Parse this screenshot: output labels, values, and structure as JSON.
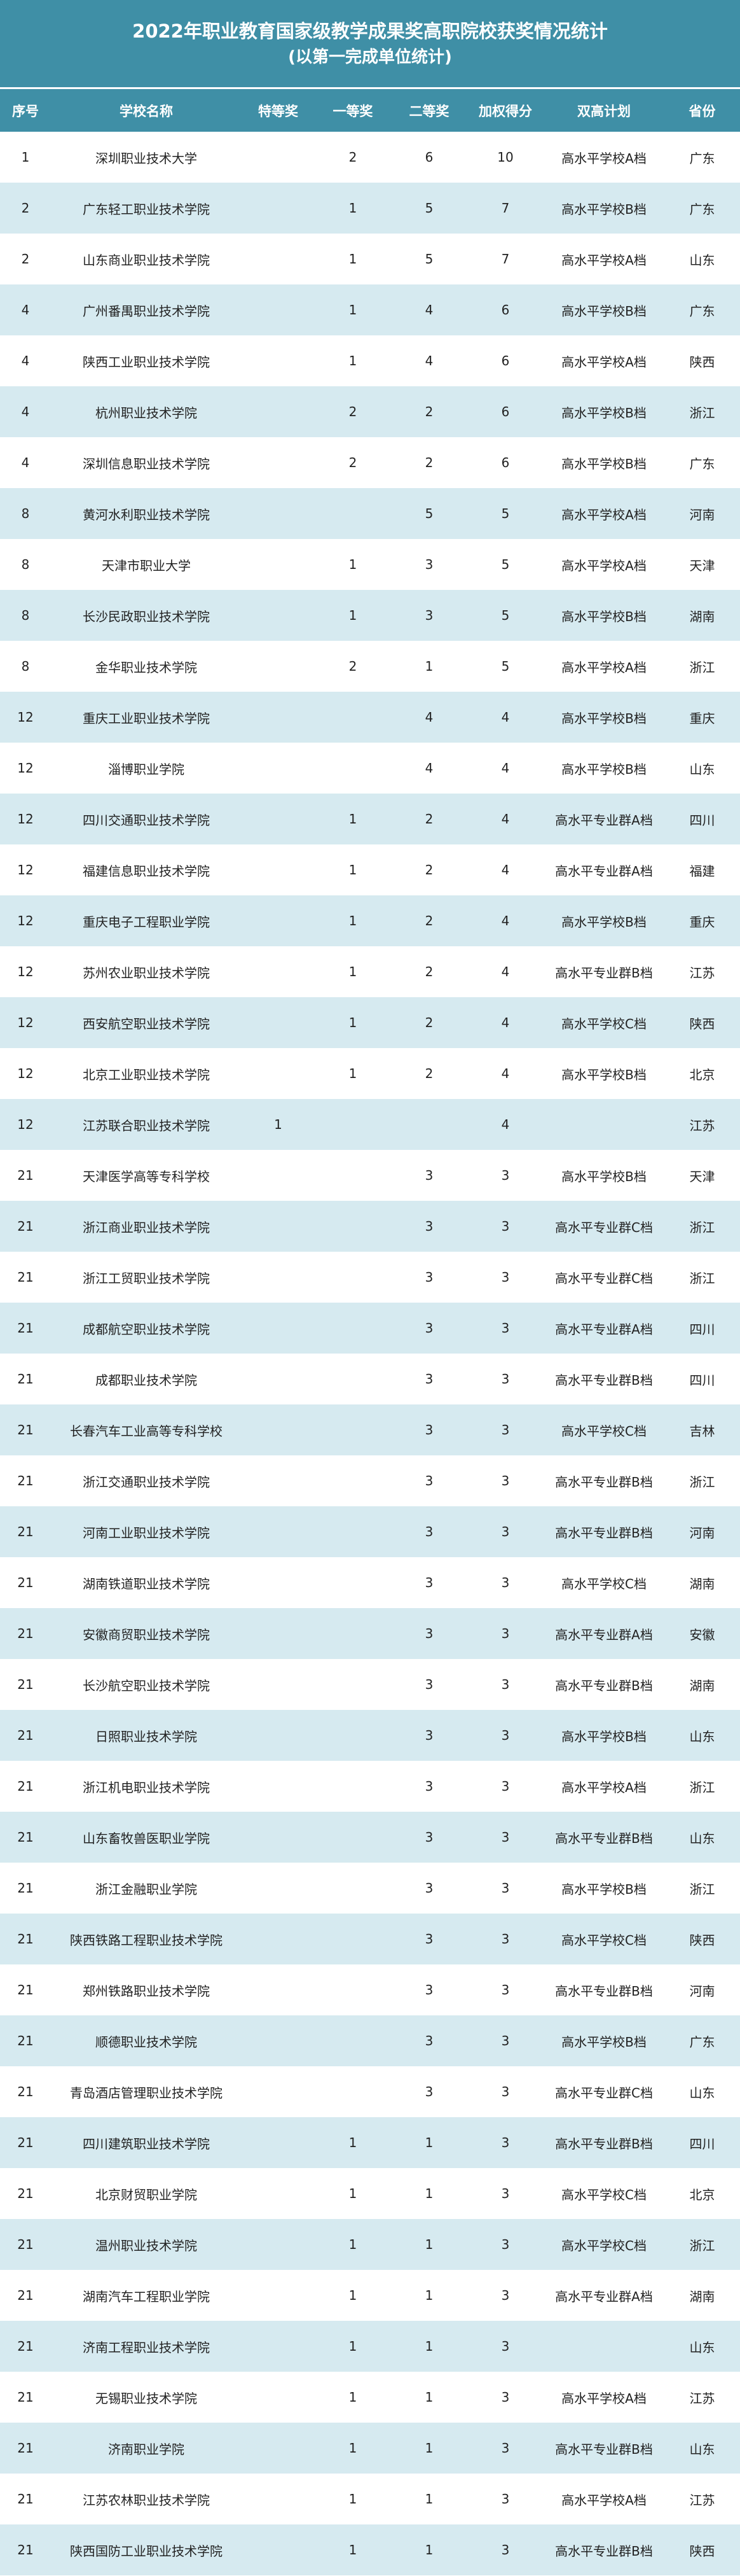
{
  "title": "2022年职业教育国家级教学成果奖高职院校获奖情况统计",
  "subtitle": "(以第一完成单位统计)",
  "colors": {
    "header_bg": "#3f8fa6",
    "alt_row_bg": "#d6eaf0"
  },
  "columns": [
    "序号",
    "学校名称",
    "特等奖",
    "一等奖",
    "二等奖",
    "加权得分",
    "双高计划",
    "省份"
  ],
  "rows": [
    [
      "1",
      "深圳职业技术大学",
      "",
      "2",
      "6",
      "10",
      "高水平学校A档",
      "广东"
    ],
    [
      "2",
      "广东轻工职业技术学院",
      "",
      "1",
      "5",
      "7",
      "高水平学校B档",
      "广东"
    ],
    [
      "2",
      "山东商业职业技术学院",
      "",
      "1",
      "5",
      "7",
      "高水平学校A档",
      "山东"
    ],
    [
      "4",
      "广州番禺职业技术学院",
      "",
      "1",
      "4",
      "6",
      "高水平学校B档",
      "广东"
    ],
    [
      "4",
      "陕西工业职业技术学院",
      "",
      "1",
      "4",
      "6",
      "高水平学校A档",
      "陕西"
    ],
    [
      "4",
      "杭州职业技术学院",
      "",
      "2",
      "2",
      "6",
      "高水平学校B档",
      "浙江"
    ],
    [
      "4",
      "深圳信息职业技术学院",
      "",
      "2",
      "2",
      "6",
      "高水平学校B档",
      "广东"
    ],
    [
      "8",
      "黄河水利职业技术学院",
      "",
      "",
      "5",
      "5",
      "高水平学校A档",
      "河南"
    ],
    [
      "8",
      "天津市职业大学",
      "",
      "1",
      "3",
      "5",
      "高水平学校A档",
      "天津"
    ],
    [
      "8",
      "长沙民政职业技术学院",
      "",
      "1",
      "3",
      "5",
      "高水平学校B档",
      "湖南"
    ],
    [
      "8",
      "金华职业技术学院",
      "",
      "2",
      "1",
      "5",
      "高水平学校A档",
      "浙江"
    ],
    [
      "12",
      "重庆工业职业技术学院",
      "",
      "",
      "4",
      "4",
      "高水平学校B档",
      "重庆"
    ],
    [
      "12",
      "淄博职业学院",
      "",
      "",
      "4",
      "4",
      "高水平学校B档",
      "山东"
    ],
    [
      "12",
      "四川交通职业技术学院",
      "",
      "1",
      "2",
      "4",
      "高水平专业群A档",
      "四川"
    ],
    [
      "12",
      "福建信息职业技术学院",
      "",
      "1",
      "2",
      "4",
      "高水平专业群A档",
      "福建"
    ],
    [
      "12",
      "重庆电子工程职业学院",
      "",
      "1",
      "2",
      "4",
      "高水平学校B档",
      "重庆"
    ],
    [
      "12",
      "苏州农业职业技术学院",
      "",
      "1",
      "2",
      "4",
      "高水平专业群B档",
      "江苏"
    ],
    [
      "12",
      "西安航空职业技术学院",
      "",
      "1",
      "2",
      "4",
      "高水平学校C档",
      "陕西"
    ],
    [
      "12",
      "北京工业职业技术学院",
      "",
      "1",
      "2",
      "4",
      "高水平学校B档",
      "北京"
    ],
    [
      "12",
      "江苏联合职业技术学院",
      "1",
      "",
      "",
      "4",
      "",
      "江苏"
    ],
    [
      "21",
      "天津医学高等专科学校",
      "",
      "",
      "3",
      "3",
      "高水平学校B档",
      "天津"
    ],
    [
      "21",
      "浙江商业职业技术学院",
      "",
      "",
      "3",
      "3",
      "高水平专业群C档",
      "浙江"
    ],
    [
      "21",
      "浙江工贸职业技术学院",
      "",
      "",
      "3",
      "3",
      "高水平专业群C档",
      "浙江"
    ],
    [
      "21",
      "成都航空职业技术学院",
      "",
      "",
      "3",
      "3",
      "高水平专业群A档",
      "四川"
    ],
    [
      "21",
      "成都职业技术学院",
      "",
      "",
      "3",
      "3",
      "高水平专业群B档",
      "四川"
    ],
    [
      "21",
      "长春汽车工业高等专科学校",
      "",
      "",
      "3",
      "3",
      "高水平学校C档",
      "吉林"
    ],
    [
      "21",
      "浙江交通职业技术学院",
      "",
      "",
      "3",
      "3",
      "高水平专业群B档",
      "浙江"
    ],
    [
      "21",
      "河南工业职业技术学院",
      "",
      "",
      "3",
      "3",
      "高水平专业群B档",
      "河南"
    ],
    [
      "21",
      "湖南铁道职业技术学院",
      "",
      "",
      "3",
      "3",
      "高水平学校C档",
      "湖南"
    ],
    [
      "21",
      "安徽商贸职业技术学院",
      "",
      "",
      "3",
      "3",
      "高水平专业群A档",
      "安徽"
    ],
    [
      "21",
      "长沙航空职业技术学院",
      "",
      "",
      "3",
      "3",
      "高水平专业群B档",
      "湖南"
    ],
    [
      "21",
      "日照职业技术学院",
      "",
      "",
      "3",
      "3",
      "高水平学校B档",
      "山东"
    ],
    [
      "21",
      "浙江机电职业技术学院",
      "",
      "",
      "3",
      "3",
      "高水平学校A档",
      "浙江"
    ],
    [
      "21",
      "山东畜牧兽医职业学院",
      "",
      "",
      "3",
      "3",
      "高水平专业群B档",
      "山东"
    ],
    [
      "21",
      "浙江金融职业学院",
      "",
      "",
      "3",
      "3",
      "高水平学校B档",
      "浙江"
    ],
    [
      "21",
      "陕西铁路工程职业技术学院",
      "",
      "",
      "3",
      "3",
      "高水平学校C档",
      "陕西"
    ],
    [
      "21",
      "郑州铁路职业技术学院",
      "",
      "",
      "3",
      "3",
      "高水平专业群B档",
      "河南"
    ],
    [
      "21",
      "顺德职业技术学院",
      "",
      "",
      "3",
      "3",
      "高水平学校B档",
      "广东"
    ],
    [
      "21",
      "青岛酒店管理职业技术学院",
      "",
      "",
      "3",
      "3",
      "高水平专业群C档",
      "山东"
    ],
    [
      "21",
      "四川建筑职业技术学院",
      "",
      "1",
      "1",
      "3",
      "高水平专业群B档",
      "四川"
    ],
    [
      "21",
      "北京财贸职业学院",
      "",
      "1",
      "1",
      "3",
      "高水平学校C档",
      "北京"
    ],
    [
      "21",
      "温州职业技术学院",
      "",
      "1",
      "1",
      "3",
      "高水平学校C档",
      "浙江"
    ],
    [
      "21",
      "湖南汽车工程职业学院",
      "",
      "1",
      "1",
      "3",
      "高水平专业群A档",
      "湖南"
    ],
    [
      "21",
      "济南工程职业技术学院",
      "",
      "1",
      "1",
      "3",
      "",
      "山东"
    ],
    [
      "21",
      "无锡职业技术学院",
      "",
      "1",
      "1",
      "3",
      "高水平学校A档",
      "江苏"
    ],
    [
      "21",
      "济南职业学院",
      "",
      "1",
      "1",
      "3",
      "高水平专业群B档",
      "山东"
    ],
    [
      "21",
      "江苏农林职业技术学院",
      "",
      "1",
      "1",
      "3",
      "高水平学校A档",
      "江苏"
    ],
    [
      "21",
      "陕西国防工业职业技术学院",
      "",
      "1",
      "1",
      "3",
      "高水平专业群B档",
      "陕西"
    ]
  ]
}
